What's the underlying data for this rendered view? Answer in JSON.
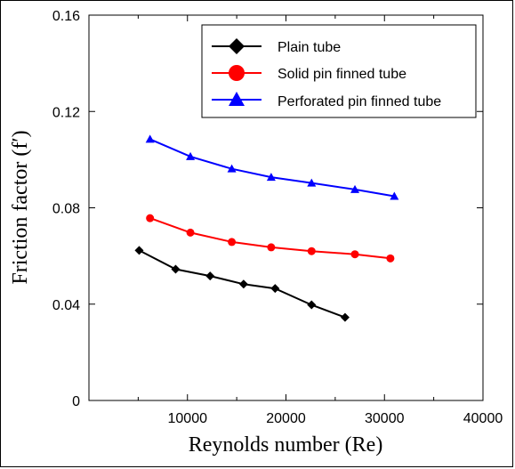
{
  "chart_data": {
    "type": "line",
    "xlabel": "Reynolds number (Re)",
    "ylabel": "Friction factor (f′)",
    "xlim": [
      0,
      40000
    ],
    "ylim": [
      0,
      0.16
    ],
    "x_ticks": [
      0,
      10000,
      20000,
      30000,
      40000
    ],
    "y_ticks": [
      0,
      0.04,
      0.08,
      0.12,
      0.16
    ],
    "x_tick_labels": [
      "",
      "10000",
      "20000",
      "30000",
      "40000"
    ],
    "y_tick_labels": [
      "0",
      "0.04",
      "0.08",
      "0.12",
      "0.16"
    ],
    "grid": false,
    "legend_position": "top-right",
    "series": [
      {
        "name": "Plain tube",
        "color": "#000000",
        "marker": "diamond",
        "x": [
          5100,
          8800,
          12300,
          15700,
          18900,
          22600,
          26000
        ],
        "y": [
          0.0623,
          0.0545,
          0.0517,
          0.0483,
          0.0465,
          0.0397,
          0.0345
        ]
      },
      {
        "name": "Solid pin finned tube",
        "color": "#ff0000",
        "marker": "circle",
        "x": [
          6200,
          10300,
          14500,
          18500,
          22600,
          27000,
          30600
        ],
        "y": [
          0.0757,
          0.0697,
          0.0658,
          0.0636,
          0.062,
          0.0607,
          0.059
        ]
      },
      {
        "name": "Perforated pin finned tube",
        "color": "#0000ff",
        "marker": "triangle",
        "x": [
          6200,
          10300,
          14500,
          18500,
          22600,
          27000,
          31000
        ],
        "y": [
          0.1085,
          0.1013,
          0.0962,
          0.0927,
          0.0903,
          0.0876,
          0.0848
        ]
      }
    ]
  }
}
